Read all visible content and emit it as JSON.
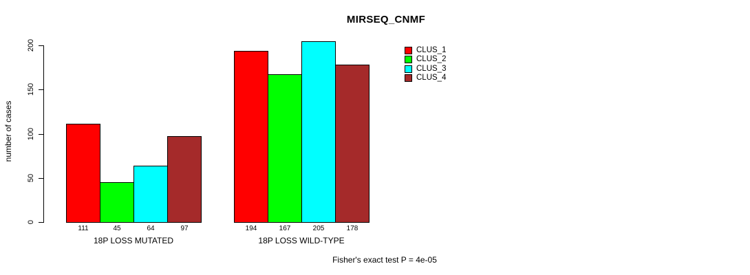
{
  "chart_data": {
    "type": "bar",
    "title": "MIRSEQ_CNMF",
    "ylabel": "number of cases",
    "xlabel": "",
    "categories": [
      "18P LOSS MUTATED",
      "18P LOSS WILD-TYPE"
    ],
    "series": [
      {
        "name": "CLUS_1",
        "color": "#FF0000",
        "values": [
          111,
          194
        ]
      },
      {
        "name": "CLUS_2",
        "color": "#00FF00",
        "values": [
          45,
          167
        ]
      },
      {
        "name": "CLUS_3",
        "color": "#00FFFF",
        "values": [
          64,
          205
        ]
      },
      {
        "name": "CLUS_4",
        "color": "#A52A2A",
        "values": [
          97,
          178
        ]
      }
    ],
    "bar_value_labels": [
      [
        "111",
        "45",
        "64",
        "97"
      ],
      [
        "194",
        "167",
        "205",
        "178"
      ]
    ],
    "ylim": [
      0,
      200
    ],
    "yticks": [
      0,
      50,
      100,
      150,
      200
    ],
    "grid": false,
    "legend_position": "top-right",
    "bar_border_color": "#000000",
    "annotation": "Fisher's exact test P = 4e-05"
  }
}
